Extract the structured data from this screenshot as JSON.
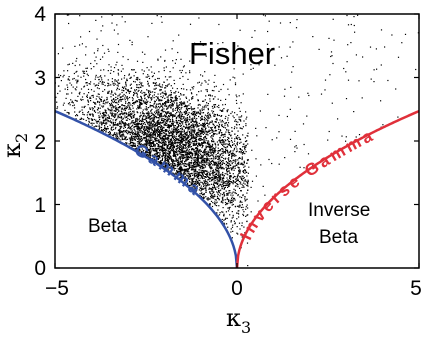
{
  "chart_data": {
    "type": "scatter",
    "xlim": [
      -5,
      5
    ],
    "ylim": [
      0,
      4
    ],
    "x_ticks": [
      "−5",
      "0",
      "5"
    ],
    "y_ticks": [
      "0",
      "1",
      "2",
      "3",
      "4"
    ],
    "xlabel": {
      "symbol": "κ",
      "sub": "3"
    },
    "ylabel": {
      "symbol": "κ",
      "sub": "2"
    },
    "grid": false,
    "scatter": {
      "color": "#000000",
      "point_count": 5200,
      "cloud_center": [
        -1.8,
        1.9
      ],
      "spread": [
        1.3,
        0.55
      ],
      "correlation": -0.45,
      "background_points": 300
    },
    "curves": [
      {
        "name": "Gamma",
        "color": "#3352a8",
        "x_range": [
          -5,
          0
        ],
        "label": "Gamma"
      },
      {
        "name": "Inverse Gamma",
        "color": "#e0303a",
        "x_range": [
          0,
          5
        ],
        "label": "Inverse Gamma"
      }
    ],
    "region_labels": {
      "fisher": "Fisher",
      "beta": "Beta",
      "inverse_beta_1": "Inverse",
      "inverse_beta_2": "Beta"
    }
  }
}
